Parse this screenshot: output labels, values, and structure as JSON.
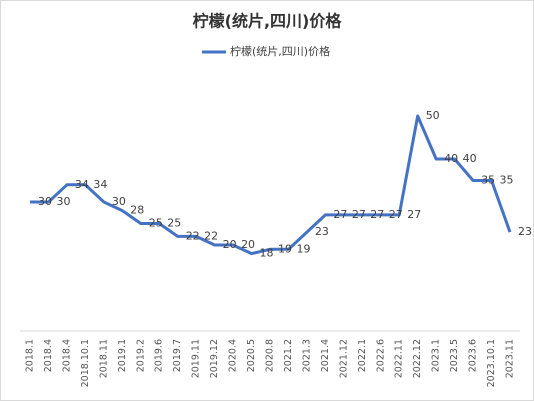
{
  "chart_data": {
    "type": "line",
    "title": "柠檬(统片,四川)价格",
    "categories": [
      "2018.1",
      "2018.4",
      "2018.4",
      "2018.10.1",
      "2018.11",
      "2019.1",
      "2019.2",
      "2019.6",
      "2019.7",
      "2019.11",
      "2019.12",
      "2020.4",
      "2020.5",
      "2020.8",
      "2021.2",
      "2021.3",
      "2021.4",
      "2021.12",
      "2022.1",
      "2022.6",
      "2022.11",
      "2022.12",
      "2023.1",
      "2023.5",
      "2023.6",
      "2023.10.1",
      "2023.11"
    ],
    "series": [
      {
        "name": "柠檬(统片,四川)价格",
        "color": "#4472c4",
        "values": [
          30,
          30,
          34,
          34,
          30,
          28,
          25,
          25,
          22,
          22,
          20,
          20,
          18,
          19,
          19,
          23,
          27,
          27,
          27,
          27,
          27,
          50,
          40,
          40,
          35,
          35,
          23
        ]
      }
    ],
    "ylim": [
      0,
      60
    ],
    "legend": "top"
  }
}
